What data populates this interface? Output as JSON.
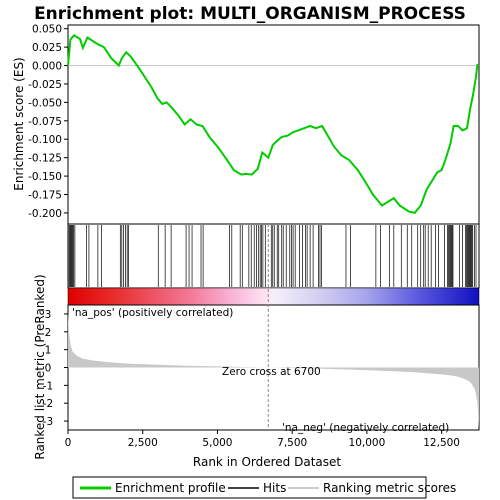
{
  "chart_data": {
    "type": "line",
    "title": "Enrichment plot: MULTI_ORGANISM_PROCESS",
    "es_panel": {
      "ylabel": "Enrichment score (ES)",
      "ylim": [
        -0.215,
        0.055
      ],
      "yticks": [
        0.05,
        0.025,
        0.0,
        -0.025,
        -0.05,
        -0.075,
        -0.1,
        -0.125,
        -0.15,
        -0.175,
        -0.2
      ],
      "ytick_labels": [
        "0.050",
        "0.025",
        "0.000",
        "-0.025",
        "-0.050",
        "-0.075",
        "-0.100",
        "-0.125",
        "-0.150",
        "-0.175",
        "-0.200"
      ],
      "series": [
        {
          "name": "Enrichment profile",
          "color": "#00cc00",
          "x": [
            0,
            80,
            200,
            400,
            500,
            650,
            800,
            1000,
            1200,
            1450,
            1700,
            1800,
            1950,
            2100,
            2400,
            2800,
            3000,
            3150,
            3300,
            3450,
            3700,
            3900,
            4100,
            4300,
            4500,
            4750,
            5000,
            5300,
            5550,
            5800,
            5950,
            6150,
            6350,
            6500,
            6700,
            6850,
            7000,
            7150,
            7350,
            7550,
            7700,
            7900,
            8100,
            8300,
            8500,
            8700,
            8900,
            9150,
            9400,
            9700,
            9950,
            10200,
            10500,
            10700,
            10900,
            11100,
            11400,
            11600,
            11800,
            12000,
            12200,
            12350,
            12500,
            12650,
            12800,
            12900,
            13050,
            13200,
            13350,
            13450,
            13550,
            13650,
            13700
          ],
          "y": [
            0.0,
            0.035,
            0.041,
            0.036,
            0.024,
            0.038,
            0.034,
            0.029,
            0.025,
            0.01,
            0.0,
            0.01,
            0.018,
            0.012,
            -0.005,
            -0.03,
            -0.045,
            -0.052,
            -0.05,
            -0.056,
            -0.068,
            -0.08,
            -0.073,
            -0.08,
            -0.082,
            -0.098,
            -0.11,
            -0.127,
            -0.142,
            -0.148,
            -0.147,
            -0.148,
            -0.14,
            -0.118,
            -0.125,
            -0.108,
            -0.102,
            -0.097,
            -0.095,
            -0.09,
            -0.088,
            -0.085,
            -0.082,
            -0.085,
            -0.082,
            -0.096,
            -0.11,
            -0.122,
            -0.128,
            -0.142,
            -0.158,
            -0.175,
            -0.19,
            -0.185,
            -0.18,
            -0.19,
            -0.198,
            -0.2,
            -0.19,
            -0.168,
            -0.155,
            -0.145,
            -0.142,
            -0.125,
            -0.105,
            -0.082,
            -0.082,
            -0.088,
            -0.085,
            -0.06,
            -0.04,
            -0.015,
            0.002
          ]
        }
      ]
    },
    "hits": [
      40,
      70,
      100,
      130,
      160,
      190,
      230,
      620,
      700,
      1000,
      1120,
      1750,
      1800,
      1860,
      1920,
      1980,
      2020,
      3020,
      3250,
      3450,
      3950,
      4050,
      4150,
      4450,
      4520,
      5400,
      5480,
      5760,
      5830,
      6050,
      6130,
      6230,
      6310,
      6380,
      6430,
      6470,
      6520,
      6600,
      6800,
      6850,
      6900,
      7000,
      7050,
      7150,
      7200,
      7300,
      7420,
      7480,
      7530,
      7600,
      7750,
      7850,
      7950,
      8000,
      8100,
      8200,
      8380,
      8430,
      8480,
      9300,
      9450,
      10300,
      10450,
      10750,
      10900,
      11150,
      11350,
      11500,
      11700,
      11800,
      11900,
      11950,
      12050,
      12150,
      12300,
      12400,
      12600,
      12700,
      12730,
      12760,
      12790,
      12820,
      12850,
      12880,
      13100,
      13200,
      13300,
      13330,
      13360,
      13390,
      13420,
      13450,
      13480,
      13510,
      13540,
      13600,
      13650
    ],
    "ranked_panel": {
      "ylabel": "Ranked list metric (PreRanked)",
      "xlabel": "Rank in Ordered Dataset",
      "ylim": [
        -3.5,
        3.5
      ],
      "yticks": [
        3,
        2,
        1,
        0,
        -1,
        -2,
        -3
      ],
      "ytick_labels": [
        "3",
        "2",
        "1",
        "0",
        "-1",
        "-2",
        "-3"
      ],
      "xlim": [
        0,
        13750
      ],
      "xticks": [
        0,
        2500,
        5000,
        7500,
        10000,
        12500
      ],
      "xtick_labels": [
        "0",
        "2,500",
        "5,000",
        "7,500",
        "10,000",
        "12,500"
      ],
      "metric_x": [
        0,
        30,
        80,
        150,
        300,
        500,
        800,
        1200,
        2000,
        3000,
        4000,
        5000,
        6000,
        6700,
        7500,
        8500,
        9500,
        10500,
        11500,
        12200,
        12700,
        13000,
        13200,
        13400,
        13500,
        13600,
        13650,
        13700,
        13730,
        13750
      ],
      "metric_y": [
        3.1,
        2.0,
        1.3,
        0.9,
        0.65,
        0.5,
        0.4,
        0.32,
        0.22,
        0.15,
        0.1,
        0.06,
        0.02,
        0.0,
        -0.03,
        -0.07,
        -0.12,
        -0.18,
        -0.26,
        -0.34,
        -0.42,
        -0.5,
        -0.6,
        -0.75,
        -0.9,
        -1.2,
        -1.5,
        -2.0,
        -2.8,
        -3.4
      ]
    },
    "annotations": {
      "pos_label": "'na_pos' (positively correlated)",
      "neg_label": "'na_neg' (negatively correlated)",
      "zero_cross": "Zero cross at 6700",
      "zero_cross_x": 6700
    },
    "legend": [
      {
        "label": "Enrichment profile",
        "color": "#00cc00"
      },
      {
        "label": "Hits",
        "color": "#000000"
      },
      {
        "label": "Ranking metric scores",
        "color": "#bbbbbb"
      }
    ],
    "colors": {
      "es_line": "#00cc00",
      "pos_label": "#cc0000",
      "neg_label": "#0000cc",
      "metric_fill": "#c8c8c8",
      "zero_line": "#888888"
    }
  }
}
